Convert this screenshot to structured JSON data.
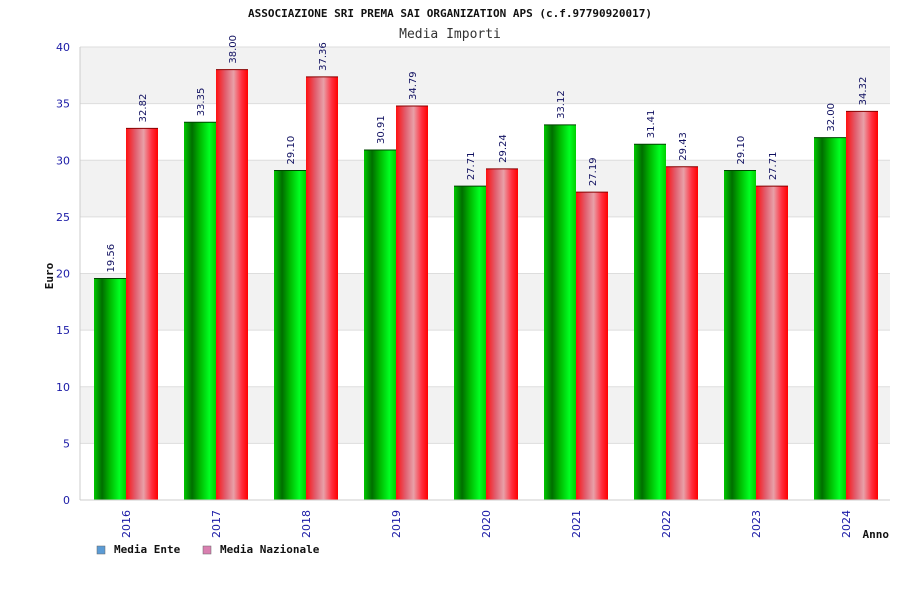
{
  "header": {
    "title": "ASSOCIAZIONE SRI PREMA SAI ORGANIZATION APS (c.f.97790920017)",
    "subtitle": "Media Importi"
  },
  "chart_data": {
    "type": "bar",
    "title": "ASSOCIAZIONE SRI PREMA SAI ORGANIZATION APS (c.f.97790920017)",
    "subtitle": "Media Importi",
    "xlabel": "Anno",
    "ylabel": "Euro",
    "ylim": [
      0,
      40
    ],
    "yticks": [
      0,
      5,
      10,
      15,
      20,
      25,
      30,
      35,
      40
    ],
    "grid": true,
    "legend_position": "bottom-left",
    "categories": [
      "2016",
      "2017",
      "2018",
      "2019",
      "2020",
      "2021",
      "2022",
      "2023",
      "2024"
    ],
    "series": [
      {
        "name": "Media Ente",
        "values": [
          19.56,
          33.35,
          29.1,
          30.91,
          27.71,
          33.12,
          31.41,
          29.1,
          32.0
        ],
        "labels": [
          "19.56",
          "33.35",
          "29.10",
          "30.91",
          "27.71",
          "33.12",
          "31.41",
          "29.10",
          "32.00"
        ],
        "color": "#00b000",
        "legend_color": "#5b9bd5"
      },
      {
        "name": "Media Nazionale",
        "values": [
          32.82,
          38.0,
          37.36,
          34.79,
          29.24,
          27.19,
          29.43,
          27.71,
          34.32
        ],
        "labels": [
          "32.82",
          "38.00",
          "37.36",
          "34.79",
          "29.24",
          "27.19",
          "29.43",
          "27.71",
          "34.32"
        ],
        "color": "#ff0000",
        "legend_color": "#d97fb0"
      }
    ]
  }
}
